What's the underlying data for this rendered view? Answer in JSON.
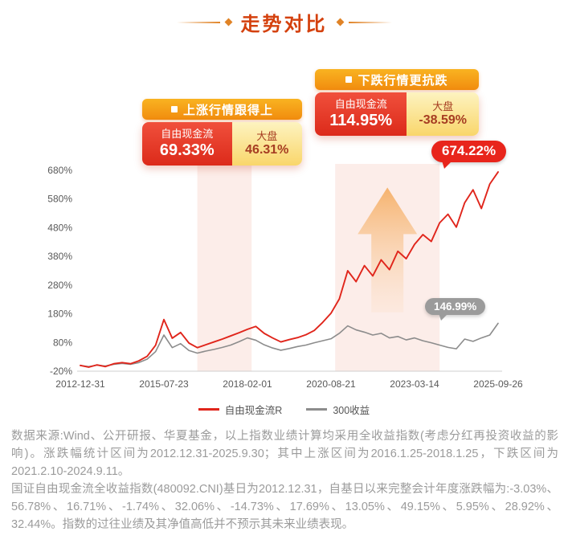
{
  "title": {
    "text": "走势对比"
  },
  "colors": {
    "accent_red": "#e0251b",
    "accent_orange": "#f18c0e",
    "bubble_gray": "#9b9b9b",
    "title_orange_red": "#d4410e"
  },
  "callout_left": {
    "header": "上涨行情跟得上",
    "col1_label": "自由现金流",
    "col1_value": "69.33%",
    "col2_label": "大盘",
    "col2_value": "46.31%"
  },
  "callout_right": {
    "header": "下跌行情更抗跌",
    "col1_label": "自由现金流",
    "col1_value": "114.95%",
    "col2_label": "大盘",
    "col2_value": "-38.59%"
  },
  "bubbles": {
    "red": "674.22%",
    "gray": "146.99%"
  },
  "chart_data": {
    "type": "line",
    "title": "走势对比",
    "x_ticks": [
      "2012-12-31",
      "2015-07-23",
      "2018-02-01",
      "2020-08-21",
      "2023-03-14",
      "2025-09-26"
    ],
    "y_ticks": [
      "680%",
      "580%",
      "480%",
      "380%",
      "280%",
      "180%",
      "80%",
      "-20%"
    ],
    "ylim": [
      -20,
      680
    ],
    "grid": false,
    "legend_position": "bottom",
    "series": [
      {
        "name": "自由现金流R",
        "color": "#e0251b",
        "values": [
          0,
          -6,
          2,
          -4,
          6,
          10,
          6,
          16,
          32,
          70,
          160,
          95,
          115,
          78,
          62,
          72,
          82,
          92,
          103,
          114,
          126,
          136,
          112,
          96,
          82,
          90,
          97,
          107,
          122,
          150,
          182,
          232,
          330,
          292,
          348,
          312,
          368,
          334,
          398,
          372,
          422,
          456,
          432,
          497,
          527,
          482,
          567,
          612,
          547,
          632,
          674.22
        ]
      },
      {
        "name": "300收益",
        "color": "#8c8c8c",
        "values": [
          0,
          -4,
          1,
          -2,
          4,
          7,
          4,
          10,
          22,
          48,
          106,
          62,
          76,
          52,
          43,
          50,
          56,
          63,
          71,
          83,
          96,
          88,
          72,
          61,
          53,
          59,
          66,
          71,
          79,
          86,
          93,
          112,
          138,
          124,
          116,
          106,
          112,
          96,
          101,
          89,
          96,
          86,
          79,
          71,
          63,
          58,
          92,
          84,
          96,
          106,
          146.99
        ]
      }
    ],
    "bands": [
      {
        "from": 0.28,
        "to": 0.41,
        "label": "上涨区间 2016.1.25-2018.1.25"
      },
      {
        "from": 0.61,
        "to": 0.86,
        "label": "下跌区间 2021.2.10-2024.9.11"
      }
    ],
    "band_color": "#fbe3dd",
    "arrow": {
      "x": 0.735,
      "top_value": 620,
      "bottom_value": 185,
      "half_shaft": 20,
      "half_head": 37,
      "head_height": 58
    },
    "end_labels": {
      "自由现金流R": "674.22%",
      "300收益": "146.99%"
    }
  },
  "footer": {
    "para1": "数据来源:Wind、公开研报、华夏基金，以上指数业绩计算均采用全收益指数(考虑分红再投资收益的影响)。涨跌幅统计区间为2012.12.31-2025.9.30；其中上涨区间为2016.1.25-2018.1.25，下跌区间为2021.2.10-2024.9.11。",
    "para2": "国证自由现金流全收益指数(480092.CNI)基日为2012.12.31，自基日以来完整会计年度涨跌幅为:-3.03%、56.78%、16.71%、-1.74%、32.06%、-14.73%、17.69%、13.05%、49.15%、5.95%、28.92%、32.44%。指数的过往业绩及其净值高低并不预示其未来业绩表现。"
  }
}
